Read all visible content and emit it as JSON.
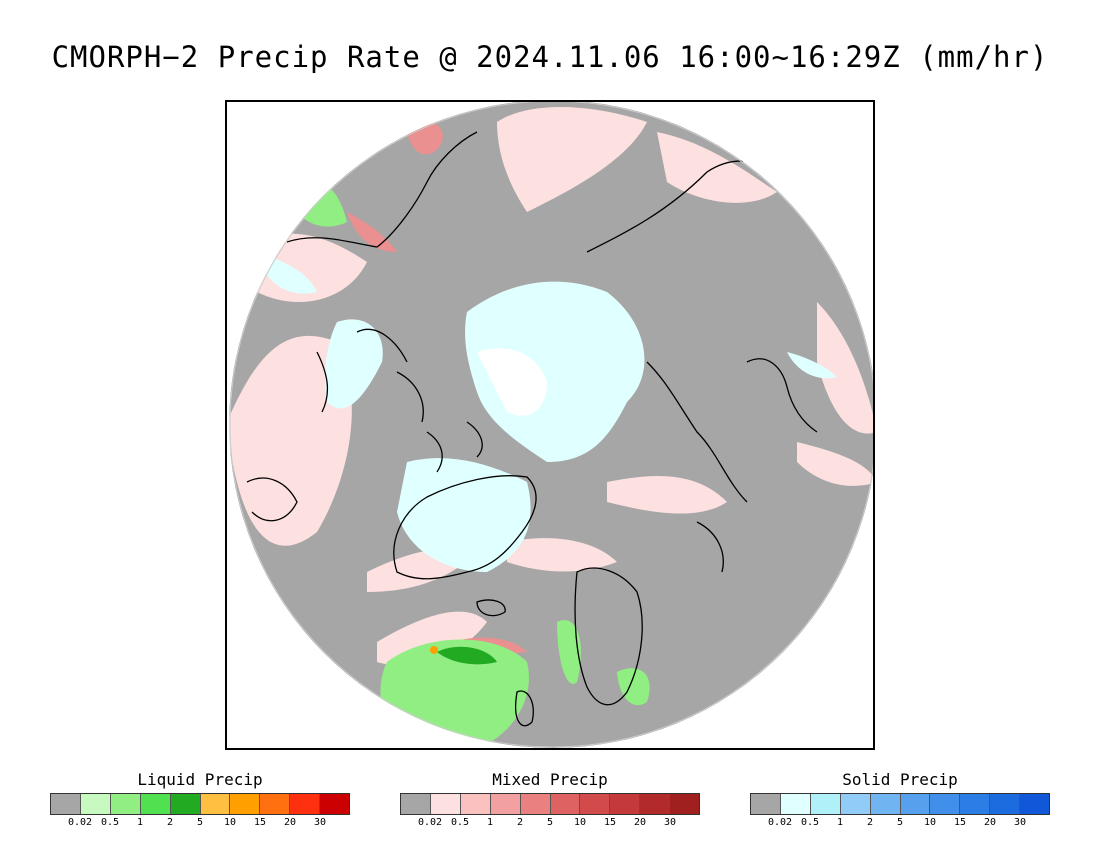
{
  "title": "CMORPH−2 Precip Rate @ 2024.11.06 16:00~16:29Z (mm/hr)",
  "legends": [
    {
      "name": "Liquid Precip",
      "colors": [
        "#a6a6a6",
        "#c6fac0",
        "#90ee82",
        "#50e050",
        "#22aa22",
        "#ffbf40",
        "#ffa000",
        "#ff7010",
        "#ff3010",
        "#cc0000"
      ],
      "ticks": [
        "0.02",
        "0.5",
        "1",
        "2",
        "5",
        "10",
        "15",
        "20",
        "30"
      ]
    },
    {
      "name": "Mixed Precip",
      "colors": [
        "#a6a6a6",
        "#fde0e0",
        "#fbc0c0",
        "#f3a0a0",
        "#ea8080",
        "#df6262",
        "#d34a4a",
        "#c43a3a",
        "#b22a2a",
        "#a02020"
      ],
      "ticks": [
        "0.02",
        "0.5",
        "1",
        "2",
        "5",
        "10",
        "15",
        "20",
        "30"
      ]
    },
    {
      "name": "Solid Precip",
      "colors": [
        "#a6a6a6",
        "#e0ffff",
        "#b0f0f8",
        "#90ccf6",
        "#70b4f2",
        "#56a0ee",
        "#4090ea",
        "#2a7ee6",
        "#1c6ce0",
        "#1058d8"
      ],
      "ticks": [
        "0.02",
        "0.5",
        "1",
        "2",
        "5",
        "10",
        "15",
        "20",
        "30"
      ]
    }
  ],
  "map": {
    "projection": "north-polar-stereographic",
    "no_precip_color": "#a6a6a6",
    "coastline_color": "#000000"
  }
}
